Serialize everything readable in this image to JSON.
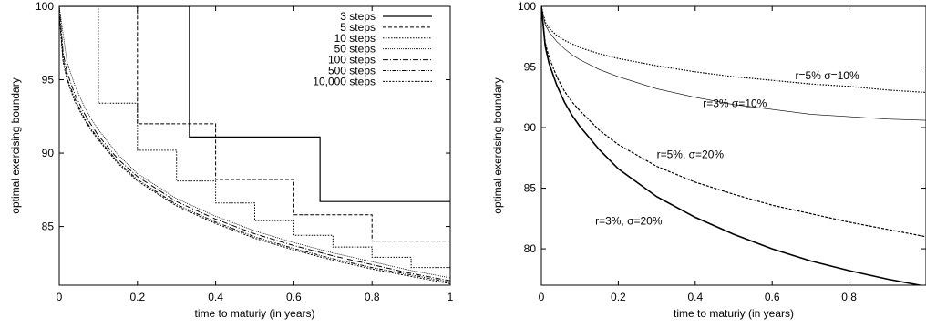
{
  "chart_data": [
    {
      "type": "line",
      "title": "",
      "xlabel": "time to maturiy (in years)",
      "ylabel": "optimal exercising boundary",
      "xlim": [
        0,
        1
      ],
      "ylim": [
        81,
        100
      ],
      "xticks": [
        0,
        0.2,
        0.4,
        0.6,
        0.8,
        1
      ],
      "xtick_labels": [
        "0",
        "0.2",
        "0.4",
        "0.6",
        "0.8",
        "1"
      ],
      "yticks": [
        85,
        90,
        95,
        100
      ],
      "ytick_labels": [
        "85",
        "90",
        "95",
        "100"
      ],
      "grid": false,
      "legend": "top-right",
      "series": [
        {
          "name": "3 steps",
          "dash": "none",
          "width": 1.2,
          "x": [
            0,
            0.333,
            0.333,
            0.667,
            0.667,
            1
          ],
          "y": [
            100,
            100,
            91.1,
            91.1,
            86.7,
            86.7
          ]
        },
        {
          "name": "5 steps",
          "dash": "4,2",
          "width": 1,
          "x": [
            0,
            0.2,
            0.2,
            0.4,
            0.4,
            0.6,
            0.6,
            0.8,
            0.8,
            1
          ],
          "y": [
            100,
            100,
            92.0,
            92.0,
            88.2,
            88.2,
            85.8,
            85.8,
            84.0,
            84.0
          ]
        },
        {
          "name": "10 steps",
          "dash": "1.5,1.5",
          "width": 1,
          "x": [
            0,
            0.1,
            0.1,
            0.2,
            0.2,
            0.3,
            0.3,
            0.4,
            0.4,
            0.5,
            0.5,
            0.6,
            0.6,
            0.7,
            0.7,
            0.8,
            0.8,
            0.9,
            0.9,
            1
          ],
          "y": [
            100,
            100,
            93.4,
            93.4,
            90.2,
            90.2,
            88.1,
            88.1,
            86.6,
            86.6,
            85.4,
            85.4,
            84.4,
            84.4,
            83.6,
            83.6,
            82.9,
            82.9,
            82.2,
            82.2
          ]
        },
        {
          "name": "50 steps",
          "dash": "1,1",
          "width": 0.8,
          "x": [
            0,
            0.02,
            0.04,
            0.06,
            0.08,
            0.1,
            0.15,
            0.2,
            0.3,
            0.4,
            0.5,
            0.6,
            0.7,
            0.8,
            0.9,
            1
          ],
          "y": [
            100,
            96.2,
            94.6,
            93.4,
            92.4,
            91.6,
            89.9,
            88.6,
            86.9,
            85.7,
            84.7,
            83.9,
            83.2,
            82.6,
            82.0,
            81.5
          ]
        },
        {
          "name": "100 steps",
          "dash": "6,2,1,2",
          "width": 1,
          "x": [
            0,
            0.01,
            0.02,
            0.04,
            0.06,
            0.08,
            0.1,
            0.15,
            0.2,
            0.3,
            0.4,
            0.5,
            0.6,
            0.7,
            0.8,
            0.9,
            1
          ],
          "y": [
            100,
            96.8,
            95.5,
            94.0,
            92.9,
            92.0,
            91.2,
            89.6,
            88.4,
            86.7,
            85.5,
            84.5,
            83.7,
            83.0,
            82.4,
            81.8,
            81.3
          ]
        },
        {
          "name": "500 steps",
          "dash": "4,1.5,1,1.5,1,1.5",
          "width": 1,
          "x": [
            0,
            0.01,
            0.02,
            0.04,
            0.06,
            0.08,
            0.1,
            0.15,
            0.2,
            0.3,
            0.4,
            0.5,
            0.6,
            0.7,
            0.8,
            0.9,
            1
          ],
          "y": [
            99.5,
            96.4,
            95.1,
            93.7,
            92.6,
            91.7,
            91.0,
            89.4,
            88.2,
            86.5,
            85.3,
            84.3,
            83.5,
            82.8,
            82.2,
            81.7,
            81.2
          ]
        },
        {
          "name": "10,000 steps",
          "dash": "2,1.5",
          "width": 1,
          "x": [
            0,
            0.01,
            0.02,
            0.04,
            0.06,
            0.08,
            0.1,
            0.15,
            0.2,
            0.3,
            0.4,
            0.5,
            0.6,
            0.7,
            0.8,
            0.9,
            1
          ],
          "y": [
            99.4,
            96.2,
            95.0,
            93.5,
            92.5,
            91.6,
            90.9,
            89.3,
            88.1,
            86.4,
            85.2,
            84.2,
            83.4,
            82.7,
            82.1,
            81.6,
            81.1
          ]
        }
      ]
    },
    {
      "type": "line",
      "title": "",
      "xlabel": "time to maturiy (in years)",
      "ylabel": "optimal exercising boundary",
      "xlim": [
        0,
        1
      ],
      "ylim": [
        77,
        100
      ],
      "xticks": [
        0,
        0.2,
        0.4,
        0.6,
        0.8
      ],
      "xtick_labels": [
        "0",
        "0.2",
        "0.4",
        "0.6",
        "0.8"
      ],
      "yticks": [
        80,
        85,
        90,
        95,
        100
      ],
      "ytick_labels": [
        "80",
        "85",
        "90",
        "95",
        "100"
      ],
      "grid": false,
      "legend": "none",
      "annotations": [
        {
          "text": "r=5% σ=10%",
          "x": 0.66,
          "y": 94.0
        },
        {
          "text": "r=3% σ=10%",
          "x": 0.42,
          "y": 91.7
        },
        {
          "text": "r=5%, σ=20%",
          "x": 0.3,
          "y": 87.5
        },
        {
          "text": "r=3%, σ=20%",
          "x": 0.14,
          "y": 82.0
        }
      ],
      "series": [
        {
          "name": "r=5% σ=10%",
          "dash": "1.5,1.5",
          "width": 1.2,
          "x": [
            0,
            0.01,
            0.02,
            0.04,
            0.06,
            0.08,
            0.1,
            0.15,
            0.2,
            0.3,
            0.4,
            0.5,
            0.6,
            0.7,
            0.8,
            0.9,
            1
          ],
          "y": [
            100,
            98.7,
            98.2,
            97.6,
            97.2,
            96.9,
            96.6,
            96.1,
            95.7,
            95.1,
            94.6,
            94.2,
            93.9,
            93.6,
            93.4,
            93.1,
            92.9
          ]
        },
        {
          "name": "r=3% σ=10%",
          "dash": "none",
          "width": 0.6,
          "x": [
            0,
            0.01,
            0.02,
            0.04,
            0.06,
            0.08,
            0.1,
            0.15,
            0.2,
            0.3,
            0.4,
            0.5,
            0.6,
            0.7,
            0.8,
            0.9,
            1
          ],
          "y": [
            100,
            98.5,
            97.9,
            97.1,
            96.5,
            96.0,
            95.6,
            94.8,
            94.2,
            93.2,
            92.5,
            91.9,
            91.5,
            91.1,
            90.9,
            90.7,
            90.6
          ]
        },
        {
          "name": "r=5%, σ=20%",
          "dash": "3,1.5",
          "width": 1.2,
          "x": [
            0,
            0.01,
            0.02,
            0.04,
            0.06,
            0.08,
            0.1,
            0.15,
            0.2,
            0.3,
            0.4,
            0.5,
            0.6,
            0.7,
            0.8,
            0.9,
            1
          ],
          "y": [
            100,
            97.0,
            95.8,
            94.2,
            93.0,
            92.1,
            91.4,
            89.8,
            88.6,
            86.8,
            85.5,
            84.5,
            83.6,
            82.9,
            82.2,
            81.6,
            81.0
          ]
        },
        {
          "name": "r=3%, σ=20%",
          "dash": "none",
          "width": 1.6,
          "x": [
            0,
            0.01,
            0.02,
            0.04,
            0.06,
            0.08,
            0.1,
            0.15,
            0.2,
            0.3,
            0.4,
            0.5,
            0.6,
            0.7,
            0.8,
            0.9,
            1
          ],
          "y": [
            100,
            96.7,
            95.3,
            93.5,
            92.1,
            91.0,
            90.1,
            88.2,
            86.6,
            84.3,
            82.6,
            81.2,
            80.0,
            79.0,
            78.2,
            77.5,
            76.9
          ]
        }
      ]
    }
  ]
}
